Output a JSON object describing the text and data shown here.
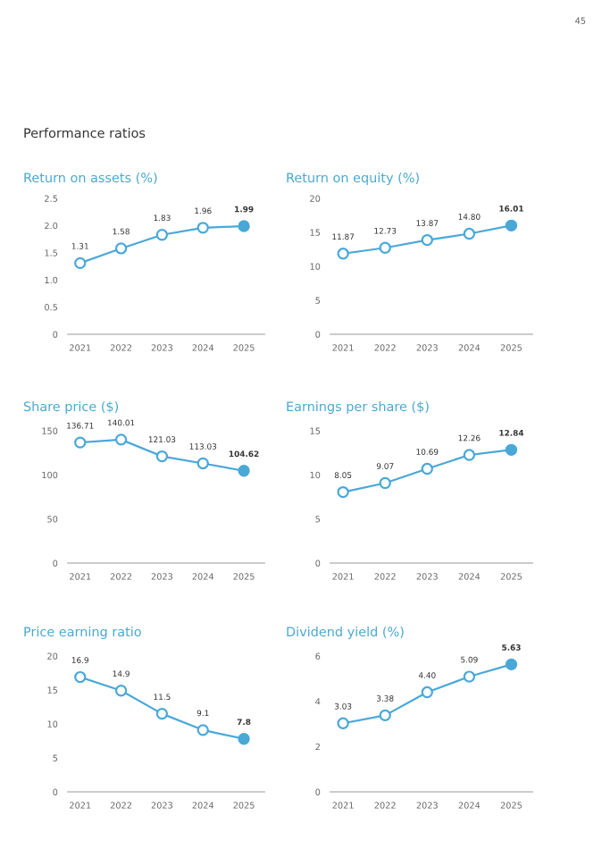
{
  "chart_data": [
    {
      "type": "line",
      "title": "Return on assets (%)",
      "annotations": [
        "45",
        "Performance ratios"
      ],
      "categories": [
        "2021",
        "2022",
        "2023",
        "2024",
        "2025"
      ],
      "series": [
        {
          "color": "#4aa8d8",
          "colors": [
            "#ffffff",
            "#ffffff",
            "#ffffff",
            "#ffffff",
            "#4aa8d8"
          ],
          "values": [
            1.31,
            1.58,
            1.83,
            1.96,
            1.99
          ]
        }
      ],
      "ylim": [
        0,
        2.5
      ],
      "yticks": [
        0,
        0.5,
        {
          "value": 1,
          "label": "1.0"
        },
        1.5,
        {
          "value": 2,
          "label": "2.0"
        },
        2.5
      ],
      "data_labels": true,
      "marker": "circle",
      "line_style": "solid",
      "grid": false,
      "legend": false
    },
    {
      "type": "line",
      "title": "Return on equity (%)",
      "categories": [
        "2021",
        "2022",
        "2023",
        "2024",
        "2025"
      ],
      "series": [
        {
          "color": "#4aa8d8",
          "colors": [
            "#ffffff",
            "#ffffff",
            "#ffffff",
            "#ffffff",
            "#4aa8d8"
          ],
          "values": [
            11.87,
            12.73,
            13.87,
            14.8,
            16.01
          ],
          "value_labels": [
            "11.87",
            "12.73",
            "13.87",
            "14.80",
            "16.01"
          ]
        }
      ],
      "ylim": [
        0,
        20
      ],
      "yticks": [
        0,
        5,
        10,
        15,
        20
      ],
      "marker": "circle",
      "line_style": "solid",
      "grid": false,
      "legend": false
    },
    {
      "type": "line",
      "title": "Share price ($)",
      "categories": [
        "2021",
        "2022",
        "2023",
        "2024",
        "2025"
      ],
      "series": [
        {
          "color": "#4aa8d8",
          "colors": [
            "#ffffff",
            "#ffffff",
            "#ffffff",
            "#ffffff",
            "#4aa8d8"
          ],
          "values": [
            136.71,
            140.01,
            121.03,
            113.03,
            104.62
          ]
        }
      ],
      "ylim": [
        0,
        150
      ],
      "yticks": [
        0,
        50,
        100,
        150
      ],
      "data_labels": true,
      "marker": "circle",
      "line_style": "solid",
      "grid": false,
      "legend": false
    },
    {
      "type": "line",
      "title": "Earnings per share ($)",
      "categories": [
        "2021",
        "2022",
        "2023",
        "2024",
        "2025"
      ],
      "series": [
        {
          "color": "#4aa8d8",
          "colors": [
            "#ffffff",
            "#ffffff",
            "#ffffff",
            "#ffffff",
            "#4aa8d8"
          ],
          "values": [
            8.05,
            9.07,
            10.69,
            12.26,
            12.84
          ]
        }
      ],
      "ylim": [
        0,
        15
      ],
      "yticks": [
        0,
        5,
        10,
        15
      ],
      "data_labels": true,
      "marker": "circle",
      "line_style": "solid",
      "grid": false,
      "legend": false
    },
    {
      "type": "line",
      "title": "Price earning ratio",
      "categories": [
        "2021",
        "2022",
        "2023",
        "2024",
        "2025"
      ],
      "series": [
        {
          "color": "#4aa8d8",
          "colors": [
            "#ffffff",
            "#ffffff",
            "#ffffff",
            "#ffffff",
            "#4aa8d8"
          ],
          "values": [
            16.9,
            14.9,
            11.5,
            9.1,
            7.8
          ]
        }
      ],
      "ylim": [
        0,
        20
      ],
      "yticks": [
        0,
        5,
        10,
        15,
        20
      ],
      "data_labels": true,
      "marker": "circle",
      "line_style": "solid",
      "grid": false,
      "legend": false
    },
    {
      "type": "line",
      "title": "Dividend yield (%)",
      "categories": [
        "2021",
        "2022",
        "2023",
        "2024",
        "2025"
      ],
      "series": [
        {
          "color": "#4aa8d8",
          "colors": [
            "#ffffff",
            "#ffffff",
            "#ffffff",
            "#ffffff",
            "#4aa8d8"
          ],
          "values": [
            3.03,
            3.38,
            4.4,
            5.09,
            5.63
          ],
          "value_labels": [
            "3.03",
            "3.38",
            "4.40",
            "5.09",
            "5.63"
          ]
        }
      ],
      "ylim": [
        0,
        6
      ],
      "yticks": [
        0,
        2,
        4,
        6
      ],
      "marker": "circle",
      "line_style": "solid",
      "grid": false,
      "legend": false
    }
  ]
}
